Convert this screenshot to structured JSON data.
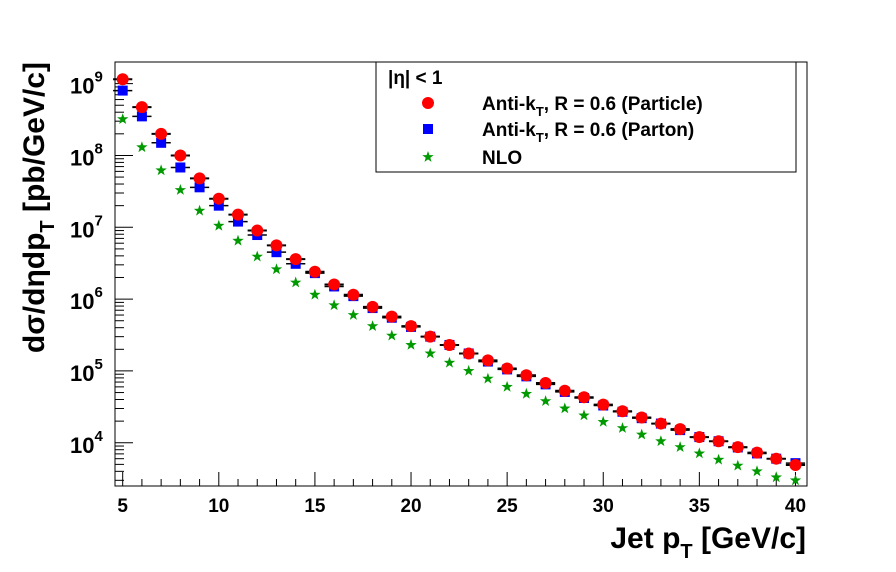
{
  "chart_data": {
    "type": "scatter",
    "xlabel_main": "Jet p",
    "xlabel_sub": "T",
    "xlabel_tail": " [GeV/c]",
    "ylabel_main": "dσ/dηdp",
    "ylabel_sub": "T",
    "ylabel_tail": " [pb/GeV/c]",
    "xlim": [
      4.6,
      40.6
    ],
    "ylim": [
      2500,
      2000000000
    ],
    "yscale": "log",
    "x_ticks": [
      5,
      10,
      15,
      20,
      25,
      30,
      35,
      40
    ],
    "y_ticks": [
      {
        "value": 10000,
        "mantissa": "10",
        "exp": "4"
      },
      {
        "value": 100000,
        "mantissa": "10",
        "exp": "5"
      },
      {
        "value": 1000000,
        "mantissa": "10",
        "exp": "6"
      },
      {
        "value": 10000000,
        "mantissa": "10",
        "exp": "7"
      },
      {
        "value": 100000000,
        "mantissa": "10",
        "exp": "8"
      },
      {
        "value": 1000000000,
        "mantissa": "10",
        "exp": "9"
      }
    ],
    "legend": {
      "position": "top-right",
      "header": "|η| < 1"
    },
    "x": [
      5,
      6,
      7,
      8,
      9,
      10,
      11,
      12,
      13,
      14,
      15,
      16,
      17,
      18,
      19,
      20,
      21,
      22,
      23,
      24,
      25,
      26,
      27,
      28,
      29,
      30,
      31,
      32,
      33,
      34,
      35,
      36,
      37,
      38,
      39,
      40
    ],
    "series": [
      {
        "name_main": "Anti-k",
        "name_sub": "T",
        "name_tail": ", R = 0.6 (Particle)",
        "marker": "circle",
        "color": "#ff0000",
        "values": [
          1150000000,
          470000000,
          200000000,
          100000000,
          48000000,
          25000000,
          15000000,
          9000000,
          5600000,
          3600000,
          2400000,
          1600000,
          1150000,
          780000,
          570000,
          420000,
          300000,
          230000,
          175000,
          140000,
          108000,
          87000,
          68000,
          53000,
          43000,
          34000,
          27500,
          22500,
          18500,
          15500,
          12000,
          10500,
          8700,
          7300,
          6000,
          4900
        ]
      },
      {
        "name_main": "Anti-k",
        "name_sub": "T",
        "name_tail": ", R = 0.6 (Parton)",
        "marker": "square",
        "color": "#0000ff",
        "values": [
          800000000,
          350000000,
          150000000,
          68000000,
          36000000,
          20000000,
          12000000,
          7800000,
          4500000,
          3100000,
          2300000,
          1500000,
          1100000,
          750000,
          550000,
          410000,
          300000,
          230000,
          175000,
          135000,
          105000,
          84000,
          65000,
          51000,
          42000,
          33000,
          27000,
          22000,
          18500,
          15000,
          12000,
          10500,
          8600,
          7100,
          6000,
          5200
        ]
      },
      {
        "name_main": "NLO",
        "name_sub": "",
        "name_tail": "",
        "marker": "star",
        "color": "#009a00",
        "values": [
          320000000,
          130000000,
          62000000,
          33000000,
          17000000,
          10500000,
          6500000,
          3900000,
          2600000,
          1700000,
          1150000,
          820000,
          600000,
          420000,
          310000,
          230000,
          175000,
          130000,
          100000,
          78000,
          60000,
          48000,
          38000,
          30000,
          24000,
          19500,
          16000,
          13000,
          10500,
          8700,
          7100,
          5800,
          4800,
          4000,
          3300,
          3000
        ]
      }
    ]
  }
}
